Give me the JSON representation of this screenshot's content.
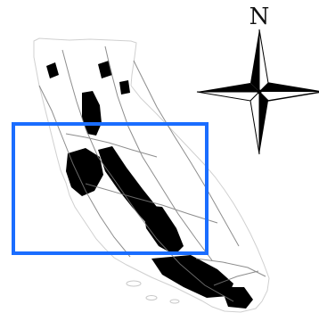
{
  "compass": {
    "north_label": "N",
    "icon": "compass-rose-icon",
    "color": "#000000"
  },
  "map": {
    "region": "california-outline",
    "fill_color": "#ffffff",
    "outline_color": "#d9d9d9",
    "dense_color": "#000000",
    "road_color": "#7a7a7a"
  },
  "selection_box": {
    "color": "#1a6dff"
  }
}
